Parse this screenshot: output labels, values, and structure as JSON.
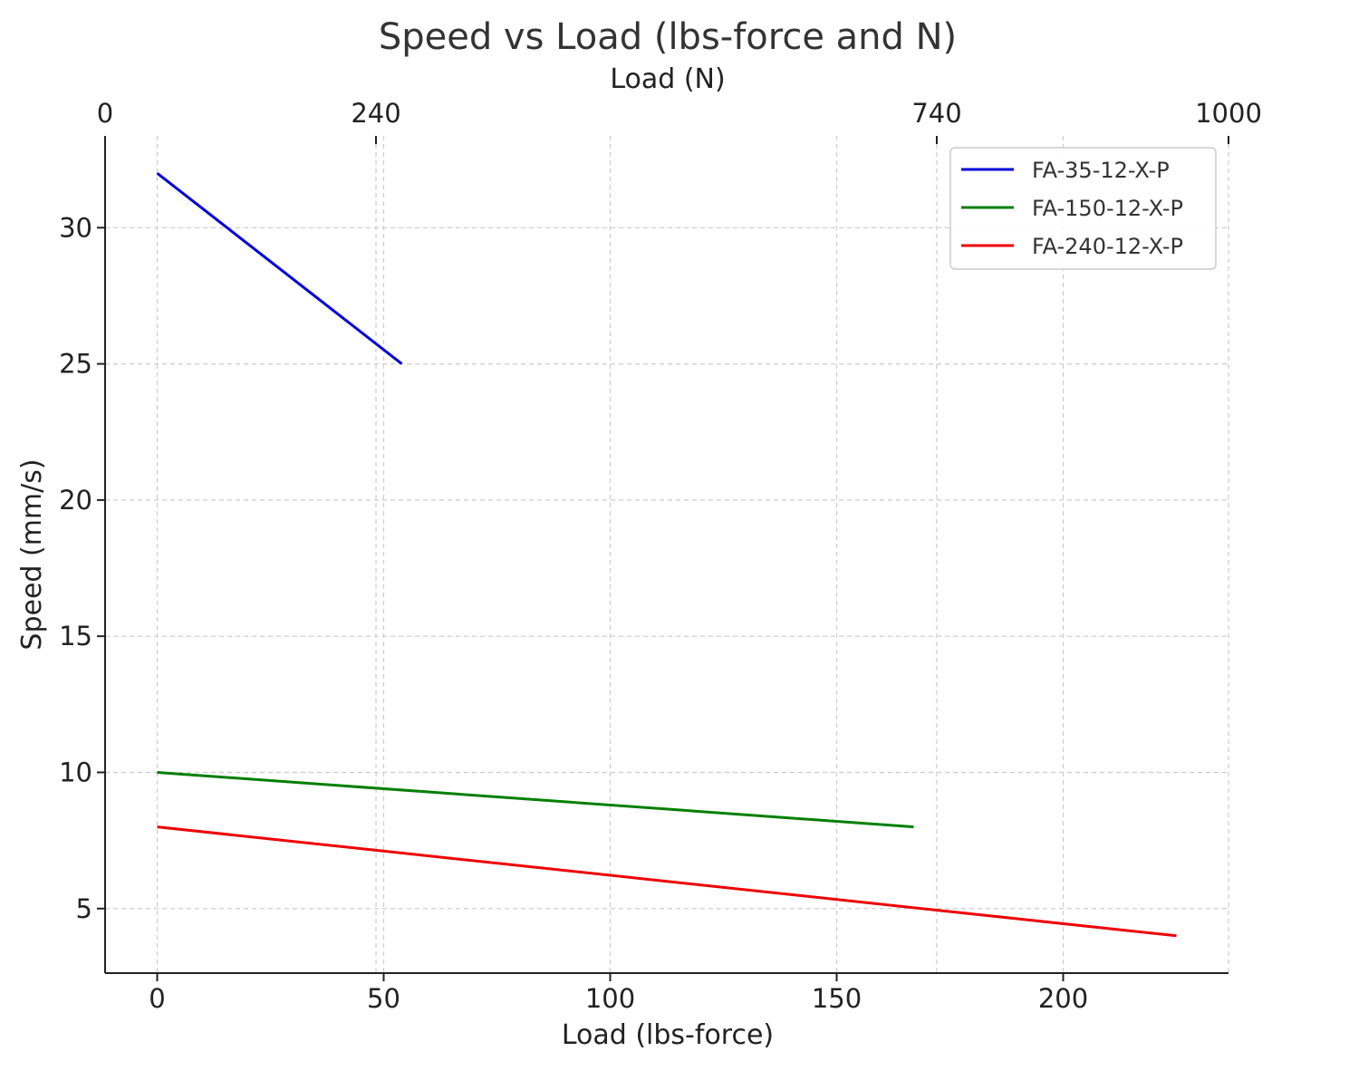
{
  "chart_data": {
    "type": "line",
    "title": "Speed vs Load (lbs-force and N)",
    "xlabel": "Load (lbs-force)",
    "ylabel": "Speed (mm/s)",
    "x2label": "Load (N)",
    "xlim": [
      -11.5,
      236.5
    ],
    "ylim": [
      2.63,
      33.37
    ],
    "x_ticks": [
      0,
      50,
      100,
      150,
      200
    ],
    "x_tick_labels": [
      "0",
      "50",
      "100",
      "150",
      "200"
    ],
    "y_ticks": [
      5,
      10,
      15,
      20,
      25,
      30
    ],
    "y_tick_labels": [
      "5",
      "10",
      "15",
      "20",
      "25",
      "30"
    ],
    "x2_ticks": [
      0,
      240,
      740,
      1000
    ],
    "x2_tick_labels": [
      "0",
      "240",
      "740",
      "1000"
    ],
    "x2_ticks_lbs": [
      -11.5,
      48.3,
      172.1,
      236.5
    ],
    "grid": true,
    "legend_position": "top-right",
    "series": [
      {
        "name": "FA-35-12-X-P",
        "color": "#0000dd",
        "x": [
          0,
          54
        ],
        "y": [
          32,
          25
        ]
      },
      {
        "name": "FA-150-12-X-P",
        "color": "#007f00",
        "x": [
          0,
          167
        ],
        "y": [
          10,
          8
        ]
      },
      {
        "name": "FA-240-12-X-P",
        "color": "#ee0000",
        "x": [
          0,
          225
        ],
        "y": [
          8,
          4
        ]
      }
    ]
  }
}
